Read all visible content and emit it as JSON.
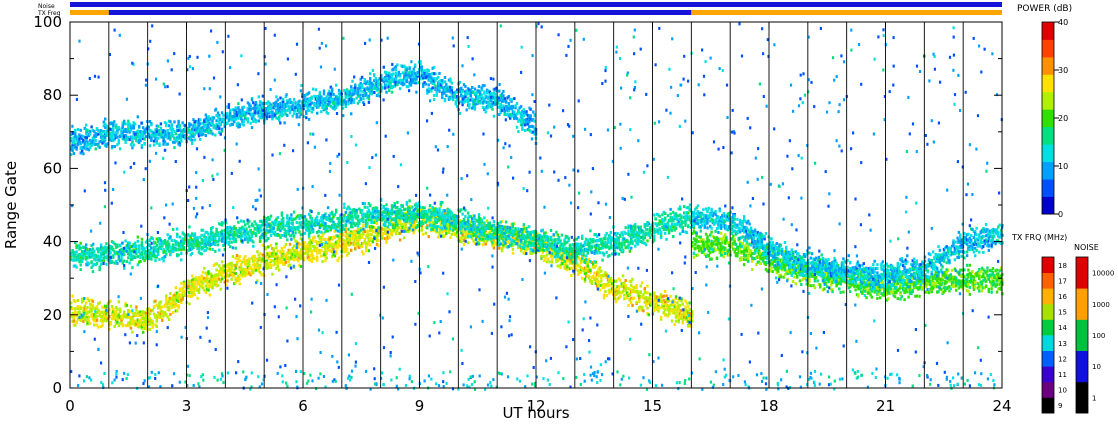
{
  "chart_data": {
    "type": "heatmap",
    "xlabel": "UT hours",
    "ylabel": "Range Gate",
    "xlim": [
      0,
      24
    ],
    "ylim": [
      0,
      100
    ],
    "x_ticks": [
      "0",
      "3",
      "6",
      "9",
      "12",
      "15",
      "18",
      "21",
      "24"
    ],
    "y_ticks": [
      "0",
      "20",
      "40",
      "60",
      "80",
      "100"
    ],
    "hour_gridlines": true,
    "status_bars": [
      {
        "label": "Noise",
        "segments": [
          {
            "start": 0,
            "end": 24,
            "color": "#1414d8"
          }
        ]
      },
      {
        "label": "TX Freq",
        "segments": [
          {
            "start": 0,
            "end": 1,
            "color": "#ffa500"
          },
          {
            "start": 1,
            "end": 16,
            "color": "#1414d8"
          },
          {
            "start": 16,
            "end": 24,
            "color": "#ffa500"
          }
        ]
      }
    ],
    "echo_bands": [
      {
        "x": [
          0,
          1,
          2,
          3,
          4,
          5,
          6,
          7,
          8,
          9,
          10,
          11,
          12,
          13,
          14,
          15,
          16
        ],
        "y": [
          21,
          20,
          19,
          27,
          32,
          35,
          38,
          40,
          43,
          47,
          44,
          42,
          40,
          34,
          28,
          24,
          20
        ],
        "power": 26
      },
      {
        "x": [
          0,
          1,
          2,
          3,
          4,
          5,
          6,
          7,
          8,
          9,
          10,
          11,
          12,
          13,
          14,
          15,
          16
        ],
        "y": [
          36,
          37,
          38,
          40,
          42,
          44,
          45,
          46,
          48,
          48,
          46,
          43,
          41,
          38,
          40,
          44,
          47
        ],
        "power": 14
      },
      {
        "x": [
          0,
          1,
          2,
          3,
          4,
          5,
          6,
          7,
          8,
          9,
          10,
          11,
          12
        ],
        "y": [
          67,
          70,
          70,
          70,
          74,
          76,
          78,
          79,
          84,
          86,
          80,
          79,
          71
        ],
        "power": 10
      },
      {
        "x": [
          16,
          17,
          18,
          19,
          20,
          21,
          22,
          23,
          24
        ],
        "y": [
          40,
          39,
          35,
          32,
          30,
          28,
          29,
          30,
          30
        ],
        "power": 20
      },
      {
        "x": [
          16,
          17,
          18,
          19,
          20,
          21,
          22,
          23,
          24
        ],
        "y": [
          47,
          46,
          38,
          34,
          32,
          31,
          33,
          40,
          42
        ],
        "power": 11
      }
    ],
    "colorbars": [
      {
        "title": "POWER (dB)",
        "ticks": [
          "0",
          "10",
          "20",
          "30",
          "40"
        ],
        "range": [
          0,
          40
        ],
        "colors": [
          "#0000cd",
          "#0050ff",
          "#00a0ff",
          "#00e0e0",
          "#00e080",
          "#30e000",
          "#b0f000",
          "#ffe000",
          "#ff9000",
          "#ff4000",
          "#e00000"
        ]
      },
      {
        "title": "TX FRQ (MHz)",
        "ticks": [
          "9",
          "10",
          "11",
          "12",
          "13",
          "14",
          "15",
          "16",
          "17",
          "18"
        ],
        "colors": [
          "#000000",
          "#6a0080",
          "#3a00d0",
          "#0060ff",
          "#00d8e0",
          "#00cc40",
          "#a8e000",
          "#ffb000",
          "#ff6000",
          "#e00000"
        ]
      },
      {
        "title": "NOISE",
        "ticks": [
          "1",
          "10",
          "100",
          "1000",
          "10000"
        ],
        "colors": [
          "#000000",
          "#1010e0",
          "#00c040",
          "#ffa000",
          "#e00000"
        ]
      }
    ]
  }
}
